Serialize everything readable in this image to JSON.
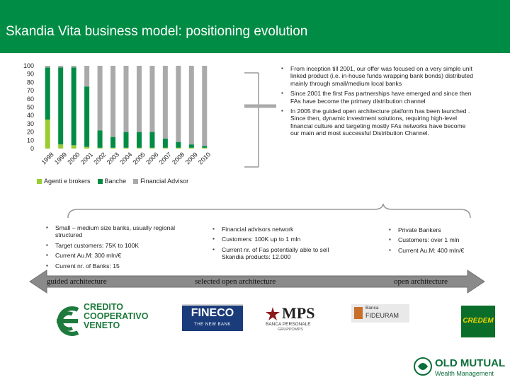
{
  "page": {
    "title": "Skandia Vita business model: positioning evolution"
  },
  "chart_data": {
    "type": "bar",
    "stacked": true,
    "categories": [
      "1998",
      "1999",
      "2000",
      "2001",
      "2002",
      "2003",
      "2004",
      "2005",
      "2006",
      "2007",
      "2008",
      "2009",
      "2010"
    ],
    "series": [
      {
        "name": "Agenti e brokers",
        "color": "#9acd32",
        "values": [
          35,
          5,
          4,
          2,
          1,
          1,
          1,
          1,
          1,
          1,
          1,
          1,
          1
        ]
      },
      {
        "name": "Banche",
        "color": "#008c45",
        "values": [
          63,
          93,
          94,
          73,
          21,
          13,
          19,
          19,
          19,
          11,
          7,
          4,
          2
        ]
      },
      {
        "name": "Financial Advisor",
        "color": "#aaaaaa",
        "values": [
          2,
          2,
          2,
          25,
          78,
          86,
          80,
          80,
          80,
          88,
          92,
          95,
          97
        ]
      }
    ],
    "yticks": [
      "100",
      "90",
      "80",
      "70",
      "60",
      "50",
      "40",
      "30",
      "20",
      "10",
      "0"
    ],
    "ylim": [
      0,
      100
    ],
    "legend_position": "bottom"
  },
  "right_bullets": [
    "From inception till 2001, our offer was focused on a very simple unit linked product (i.e. in-house funds wrapping bank bonds) distributed mainly through small/medium local banks",
    "Since 2001 the first Fas partnerships have emerged and since then FAs have become the primary distribution channel",
    "In 2005 the guided open architecture platform has been launched . Since then, dynamic investment solutions, requiring high-level financial culture and targeting mostly FAs networks have become our main and most successful Distribution Channel."
  ],
  "columns": {
    "guided": {
      "bullets": [
        "Small – medium size banks, usually regional structured",
        "Target customers: 75K to 100K",
        "Current Au.M: 300 mln/€",
        "Current nr. of Banks: 15"
      ],
      "label": "guided architecture"
    },
    "selected": {
      "bullets": [
        "Financial advisors network",
        "Customers: 100K up to 1 mln",
        "Current nr. of Fas potentially able to sell Skandia products: 12.000"
      ],
      "label": "selected open architecture"
    },
    "open": {
      "bullets": [
        "Private Bankers",
        "Customers: over 1 mln",
        "Current Au.M: 400 mln/€"
      ],
      "label": "open architecture"
    }
  },
  "logos": {
    "credito": [
      "CREDITO",
      "COOPERATIVO",
      "VENETO"
    ],
    "fineco": {
      "name": "FINECO",
      "sub": "THE NEW BANK"
    },
    "mps": {
      "name": "MPS",
      "sub1": "BANCA PERSONALE",
      "sub2": "GRUPPOMPS"
    },
    "fideuram": {
      "line1": "Banca",
      "line2": "FIDEURAM"
    },
    "credem": "CREDEM",
    "oldmutual": {
      "name": "OLD MUTUAL",
      "sub": "Wealth Management"
    }
  },
  "colors": {
    "header": "#008c45",
    "arrow": "#8a8a8a"
  }
}
